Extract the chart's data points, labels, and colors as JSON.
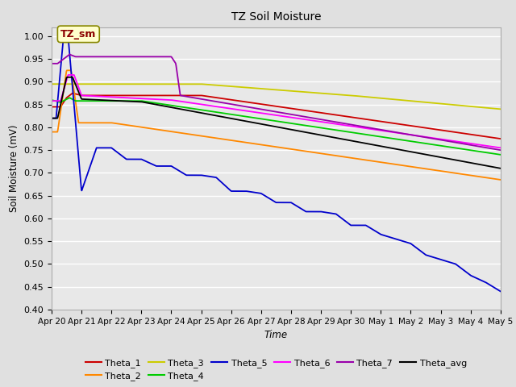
{
  "title": "TZ Soil Moisture",
  "ylabel": "Soil Moisture (mV)",
  "xlabel": "Time",
  "ylim": [
    0.4,
    1.02
  ],
  "yticks": [
    0.4,
    0.45,
    0.5,
    0.55,
    0.6,
    0.65,
    0.7,
    0.75,
    0.8,
    0.85,
    0.9,
    0.95,
    1.0
  ],
  "bg_color": "#e0e0e0",
  "plot_bg": "#e8e8e8",
  "legend_label": "TZ_sm",
  "series_colors": {
    "Theta_1": "#cc0000",
    "Theta_2": "#ff8800",
    "Theta_3": "#cccc00",
    "Theta_4": "#00cc00",
    "Theta_5": "#0000cc",
    "Theta_6": "#ff00ff",
    "Theta_7": "#9900aa",
    "Theta_avg": "#000000"
  },
  "xtick_labels": [
    "Apr 20",
    "Apr 21",
    "Apr 22",
    "Apr 23",
    "Apr 24",
    "Apr 25",
    "Apr 26",
    "Apr 27",
    "Apr 28",
    "Apr 29",
    "Apr 30",
    "May 1",
    "May 2",
    "May 3",
    "May 4",
    "May 5"
  ],
  "figsize": [
    6.4,
    4.8
  ],
  "dpi": 100
}
